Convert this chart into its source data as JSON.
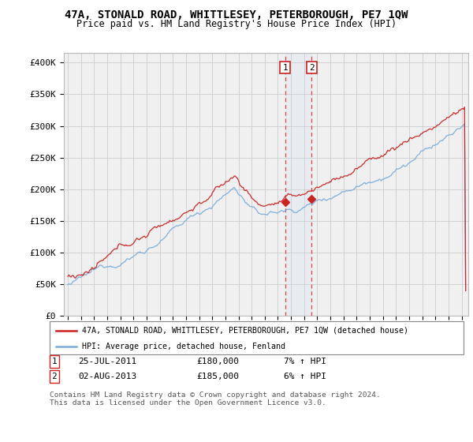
{
  "title": "47A, STONALD ROAD, WHITTLESEY, PETERBOROUGH, PE7 1QW",
  "subtitle": "Price paid vs. HM Land Registry's House Price Index (HPI)",
  "ylabel_ticks": [
    "£0",
    "£50K",
    "£100K",
    "£150K",
    "£200K",
    "£250K",
    "£300K",
    "£350K",
    "£400K"
  ],
  "ytick_vals": [
    0,
    50000,
    100000,
    150000,
    200000,
    250000,
    300000,
    350000,
    400000
  ],
  "ylim": [
    0,
    415000
  ],
  "xlim_start": 1994.7,
  "xlim_end": 2025.5,
  "hpi_color": "#7aaddc",
  "price_color": "#cc2222",
  "background_color": "#f0f0f0",
  "grid_color": "#cccccc",
  "sale1_x": 2011.55,
  "sale1_y": 180000,
  "sale2_x": 2013.58,
  "sale2_y": 185000,
  "legend_line1": "47A, STONALD ROAD, WHITTLESEY, PETERBOROUGH, PE7 1QW (detached house)",
  "legend_line2": "HPI: Average price, detached house, Fenland",
  "table_row1": [
    "1",
    "25-JUL-2011",
    "£180,000",
    "7% ↑ HPI"
  ],
  "table_row2": [
    "2",
    "02-AUG-2013",
    "£185,000",
    "6% ↑ HPI"
  ],
  "footnote": "Contains HM Land Registry data © Crown copyright and database right 2024.\nThis data is licensed under the Open Government Licence v3.0.",
  "shade_x1": 2011.55,
  "shade_x2": 2013.58
}
